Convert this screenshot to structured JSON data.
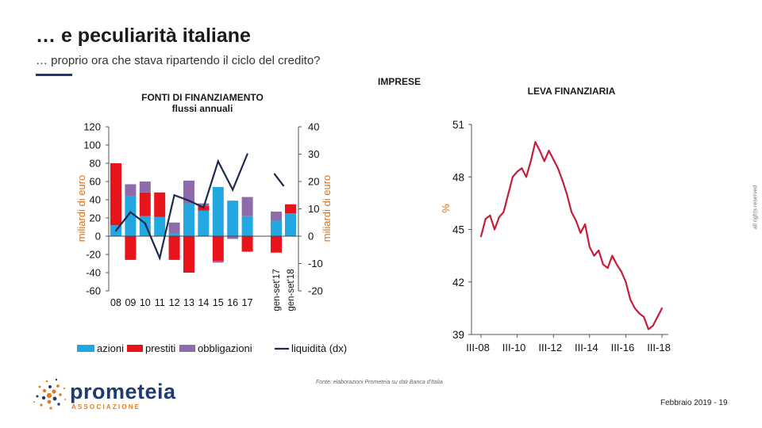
{
  "title": "… e peculiarità italiane",
  "subtitle": "… proprio ora che stava ripartendo il ciclo del credito?",
  "section_label": "IMPRESE",
  "rights": "all rights reserved",
  "source": "Fonte: elaborazioni Prometeia su dati Banca d'Italia",
  "footer": "Febbraio 2019 - 19",
  "logo": {
    "name": "prometeia",
    "tagline": "ASSOCIAZIONE"
  },
  "colors": {
    "accent": "#1e3a6e",
    "azioni": "#22a7e0",
    "prestiti": "#e8141c",
    "obbligazioni": "#8e6bab",
    "liquidita": "#1c2a4d",
    "leva": "#c41e3a",
    "axis_label": "#d9701e",
    "logo_orange": "#e07b24",
    "logo_navy": "#1f3b6f"
  },
  "chart_data": [
    {
      "type": "bar",
      "stacked": true,
      "title": "FONTI DI FINANZIAMENTO",
      "subtitle": "flussi annuali",
      "ylabel": "miliardi di euro",
      "y2label": "miliardi di euro",
      "ylim": [
        -60,
        120
      ],
      "y2lim": [
        -20,
        40
      ],
      "yticks": [
        120,
        100,
        80,
        60,
        40,
        20,
        0,
        -20,
        -40,
        -60
      ],
      "y2ticks": [
        40,
        30,
        20,
        10,
        0,
        -10,
        -20
      ],
      "categories": [
        "08",
        "09",
        "10",
        "11",
        "12",
        "13",
        "14",
        "15",
        "16",
        "17",
        "gen-set'17",
        "gen-set'18"
      ],
      "series": [
        {
          "name": "azioni",
          "values": [
            12,
            44,
            22,
            21,
            3,
            36,
            28,
            54,
            39,
            22,
            17,
            25
          ]
        },
        {
          "name": "prestiti",
          "values": [
            68,
            -26,
            26,
            27,
            -26,
            -40,
            5,
            -27,
            0,
            -17,
            -18,
            10
          ]
        },
        {
          "name": "obbligazioni",
          "values": [
            0,
            13,
            12,
            0,
            12,
            25,
            3,
            -2,
            -3,
            21,
            10,
            0
          ]
        }
      ],
      "line_series": {
        "name": "liquidità (dx)",
        "axis": "right",
        "values": [
          2,
          8.8,
          4.7,
          -8,
          15,
          13,
          10.5,
          27.4,
          17,
          30,
          22.7,
          18.5
        ]
      },
      "legend": "bottom"
    },
    {
      "type": "line",
      "title": "LEVA FINANZIARIA",
      "ylabel": "%",
      "ylim": [
        39,
        51
      ],
      "yticks": [
        51,
        48,
        45,
        42,
        39
      ],
      "xtick_labels": [
        "III-08",
        "III-10",
        "III-12",
        "III-14",
        "III-16",
        "III-18"
      ],
      "values": [
        44.6,
        45.6,
        45.8,
        45.0,
        45.7,
        46.0,
        47.0,
        48.0,
        48.3,
        48.5,
        48.0,
        48.9,
        50.0,
        49.5,
        48.9,
        49.5,
        49.0,
        48.5,
        47.8,
        47.0,
        46.0,
        45.5,
        44.8,
        45.3,
        44.0,
        43.5,
        43.8,
        43.0,
        42.8,
        43.5,
        43.0,
        42.6,
        42.0,
        41.0,
        40.5,
        40.2,
        40.0,
        39.3,
        39.5,
        40.0,
        40.5
      ]
    }
  ]
}
